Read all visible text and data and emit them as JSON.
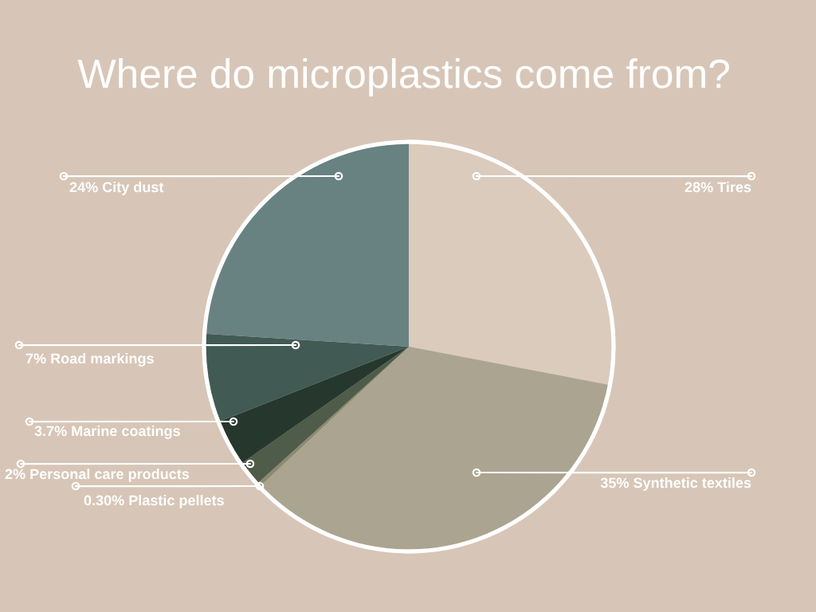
{
  "chart_data": {
    "type": "pie",
    "title": "Where do microplastics come from?",
    "categories": [
      "Tires",
      "Synthetic textiles",
      "Plastic pellets",
      "Personal care products",
      "Marine coatings",
      "Road markings",
      "City dust"
    ],
    "values": [
      28,
      35,
      0.3,
      2,
      3.7,
      7,
      24
    ],
    "value_labels": [
      "28%",
      "35%",
      "0.30%",
      "2%",
      "3.7%",
      "7%",
      "24%"
    ],
    "colors": [
      "#dbcbbd",
      "#aba491",
      "#8b8a72",
      "#4f5c4a",
      "#26382d",
      "#415a54",
      "#688282"
    ]
  }
}
